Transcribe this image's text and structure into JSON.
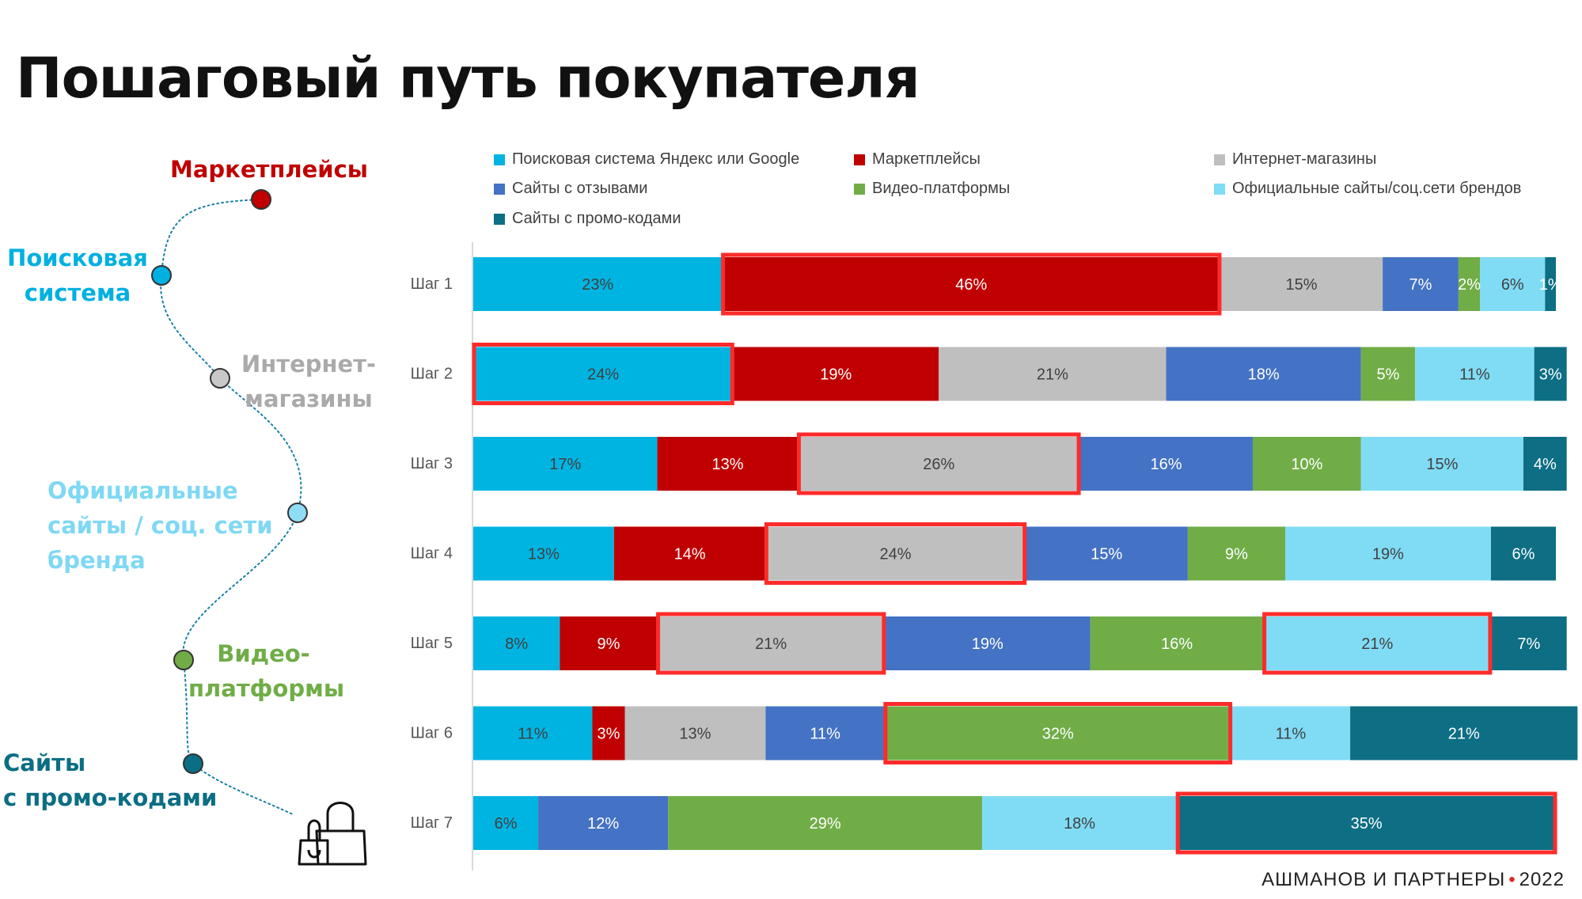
{
  "title": "Пошаговый путь покупателя",
  "footer": {
    "brand": "АШМАНОВ И ПАРТНЕРЫ",
    "dot": "•",
    "year": "2022"
  },
  "journey": [
    {
      "label": "Маркетплейсы",
      "color": "#c00000"
    },
    {
      "label": "Поисковая\nсистема",
      "color": "#00b0e0"
    },
    {
      "label": "Интернет-\nмагазины",
      "color": "#b0b0b0"
    },
    {
      "label": "Официальные\nсайты / соц. сети\nбренда",
      "color": "#7fd8f4"
    },
    {
      "label": "Видео-\nплатформы",
      "color": "#70ad47"
    },
    {
      "label": "Сайты\nс промо-кодами",
      "color": "#0b6e84"
    }
  ],
  "journey_end_icon": "shopping-bag-icon",
  "chart_data": {
    "type": "bar",
    "orientation": "horizontal",
    "stacked": true,
    "categories": [
      "Шаг 1",
      "Шаг 2",
      "Шаг 3",
      "Шаг 4",
      "Шаг 5",
      "Шаг 6",
      "Шаг 7"
    ],
    "xlim": [
      0,
      100
    ],
    "unit": "%",
    "legend_position": "top",
    "series": [
      {
        "name": "Поисковая система Яндекс или Google",
        "color": "#00b4e2",
        "values": [
          23,
          24,
          17,
          13,
          8,
          11,
          6
        ]
      },
      {
        "name": "Маркетплейсы",
        "color": "#c00000",
        "values": [
          46,
          19,
          13,
          14,
          9,
          3,
          null
        ]
      },
      {
        "name": "Интернет-магазины",
        "color": "#bfbfbf",
        "values": [
          15,
          21,
          26,
          24,
          21,
          13,
          null
        ]
      },
      {
        "name": "Сайты с отзывами",
        "color": "#4472c4",
        "values": [
          7,
          18,
          16,
          15,
          19,
          11,
          12
        ]
      },
      {
        "name": "Видео-платформы",
        "color": "#70ad47",
        "values": [
          2,
          5,
          10,
          9,
          16,
          32,
          29
        ]
      },
      {
        "name": "Официальные сайты/соц.сети брендов",
        "color": "#80dcf5",
        "values": [
          6,
          11,
          15,
          19,
          21,
          11,
          18
        ]
      },
      {
        "name": "Сайты с промо-кодами",
        "color": "#0d6e84",
        "values": [
          1,
          3,
          4,
          6,
          7,
          21,
          35
        ]
      }
    ],
    "labels": [
      [
        "23%",
        "46%",
        "15%",
        "7%",
        "2%",
        "6%",
        "1%"
      ],
      [
        "24%",
        "19%",
        "21%",
        "18%",
        "5%",
        "11%",
        "3%"
      ],
      [
        "17%",
        "13%",
        "26%",
        "16%",
        "10%",
        "15%",
        "4%"
      ],
      [
        "13%",
        "14%",
        "24%",
        "15%",
        "9%",
        "19%",
        "6%"
      ],
      [
        "8%",
        "9%",
        "21%",
        "19%",
        "16%",
        "21%",
        "7%"
      ],
      [
        "11%",
        "3%",
        "13%",
        "11%",
        "32%",
        "11%",
        "21%"
      ],
      [
        "6%",
        null,
        null,
        "12%",
        "29%",
        "18%",
        "35%"
      ]
    ],
    "highlighted": [
      {
        "step": "Шаг 1",
        "series": "Маркетплейсы"
      },
      {
        "step": "Шаг 2",
        "series": "Поисковая система Яндекс или Google"
      },
      {
        "step": "Шаг 3",
        "series": "Интернет-магазины"
      },
      {
        "step": "Шаг 4",
        "series": "Интернет-магазины"
      },
      {
        "step": "Шаг 5",
        "series": "Интернет-магазины"
      },
      {
        "step": "Шаг 5",
        "series": "Официальные сайты/соц.сети брендов"
      },
      {
        "step": "Шаг 6",
        "series": "Видео-платформы"
      },
      {
        "step": "Шаг 7",
        "series": "Сайты с промо-кодами"
      }
    ],
    "highlight_color": "#ff2b2b"
  }
}
